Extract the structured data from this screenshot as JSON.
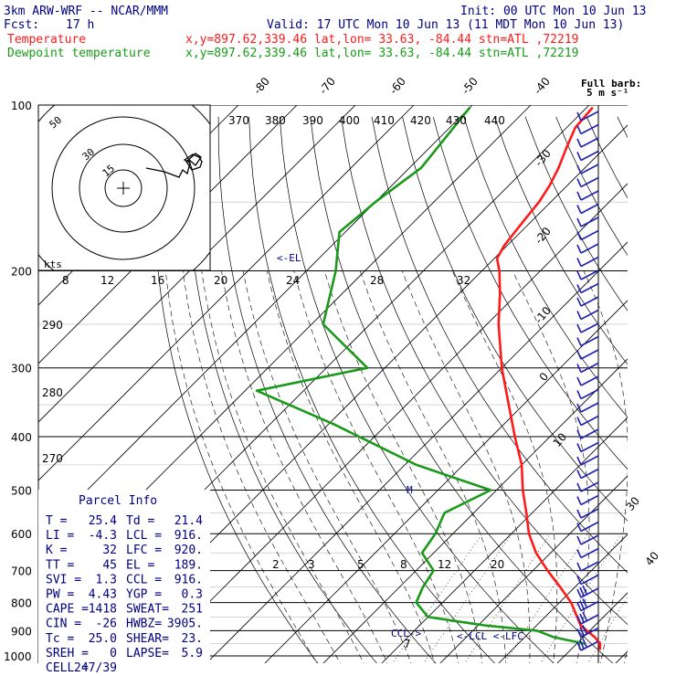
{
  "header": {
    "model": "3km ARW-WRF -- NCAR/MMM",
    "init": "Init: 00 UTC Mon 10 Jun 13",
    "fcst_label": "Fcst:",
    "fcst_value": "17 h",
    "valid": "Valid: 17 UTC Mon 10 Jun 13 (11 MDT Mon 10 Jun 13)",
    "temp_label": "Temperature",
    "dew_label": "Dewpoint temperature",
    "loc_temp": "x,y=897.62,339.46   lat,lon= 33.63, -84.44   stn=ATL ,72219",
    "loc_dew": "x,y=897.62,339.46   lat,lon= 33.63, -84.44   stn=ATL ,72219"
  },
  "colors": {
    "temperature": "#ff1a1a",
    "dewpoint": "#1a9a1a",
    "text": "#000080",
    "grid": "#000000"
  },
  "barb_label": {
    "line1": "Full barb:",
    "line2": "5 m s⁻¹"
  },
  "hodograph": {
    "units": "kts",
    "ring_labels": [
      "50",
      "30",
      "15"
    ]
  },
  "annotations": {
    "el": "<-EL",
    "lcl": "<-LCL",
    "lfc": "<-LFC",
    "ccl": "CCL->",
    "m": "M"
  },
  "parcel_info": {
    "title": "Parcel Info",
    "rows": [
      [
        "T   =",
        "25.4",
        "Td  =",
        "21.4"
      ],
      [
        "LI  =",
        "-4.3",
        "LCL =",
        "916."
      ],
      [
        "K   =",
        "32",
        "LFC =",
        "920."
      ],
      [
        "TT  =",
        "45",
        "EL  =",
        "189."
      ],
      [
        "SVI =",
        "1.3",
        "CCL =",
        "916."
      ],
      [
        "PW  =",
        "4.43",
        "YGP =",
        "0.3"
      ],
      [
        "CAPE =",
        "1418",
        "SWEAT=",
        "251"
      ],
      [
        "CIN  =",
        "-26",
        "HWBZ=",
        "3905."
      ],
      [
        "Tc  =",
        "25.0",
        "SHEAR=",
        "23."
      ],
      [
        "SREH =",
        "0",
        "LAPSE=",
        "5.9"
      ],
      [
        "CELL =",
        "247/39",
        "",
        ""
      ]
    ]
  },
  "chart_data": {
    "type": "line",
    "title": "3km ARW-WRF -- NCAR/MMM",
    "xlabel": "",
    "ylabel": "",
    "y_scale": "log-pressure (hPa, inverted)",
    "pressure_ticks": [
      100,
      200,
      300,
      400,
      500,
      600,
      700,
      800,
      900,
      1000
    ],
    "isotherm_labels": [
      "-80",
      "-70",
      "-60",
      "-50",
      "-40",
      "-30",
      "-20",
      "-10",
      "0",
      "10",
      "30",
      "40"
    ],
    "theta_labels": [
      "370",
      "380",
      "390",
      "400",
      "410",
      "420",
      "430",
      "440"
    ],
    "theta_side_labels": [
      "290",
      "280",
      "270"
    ],
    "mixing_ratio_labels_top": [
      "8",
      "12",
      "16",
      "20",
      "24",
      "28",
      "32"
    ],
    "mixing_ratio_labels_low": [
      "2",
      "3",
      "5",
      "8",
      "12",
      "20"
    ],
    "mixing_ratio_labels_bottom": [
      "7"
    ],
    "series": [
      {
        "name": "Temperature",
        "points": [
          [
            101,
            -69
          ],
          [
            110,
            -68.5
          ],
          [
            120,
            -66.5
          ],
          [
            130,
            -64.5
          ],
          [
            140,
            -63
          ],
          [
            150,
            -62
          ],
          [
            160,
            -61.5
          ],
          [
            170,
            -61
          ],
          [
            180,
            -60.5
          ],
          [
            190,
            -59.5
          ],
          [
            200,
            -57
          ],
          [
            220,
            -53
          ],
          [
            250,
            -48
          ],
          [
            300,
            -40
          ],
          [
            350,
            -32.5
          ],
          [
            400,
            -26
          ],
          [
            450,
            -20
          ],
          [
            500,
            -15.5
          ],
          [
            550,
            -11
          ],
          [
            600,
            -7
          ],
          [
            650,
            -2.5
          ],
          [
            700,
            2.5
          ],
          [
            750,
            7.5
          ],
          [
            800,
            12
          ],
          [
            850,
            15.5
          ],
          [
            880,
            17.5
          ],
          [
            900,
            19.5
          ],
          [
            925,
            22
          ],
          [
            950,
            24
          ],
          [
            975,
            25
          ]
        ]
      },
      {
        "name": "Dewpoint temperature",
        "points": [
          [
            101,
            -90
          ],
          [
            130,
            -88
          ],
          [
            150,
            -90
          ],
          [
            170,
            -91
          ],
          [
            200,
            -85
          ],
          [
            250,
            -78
          ],
          [
            300,
            -63
          ],
          [
            330,
            -78
          ],
          [
            380,
            -59
          ],
          [
            450,
            -38
          ],
          [
            500,
            -21
          ],
          [
            550,
            -25
          ],
          [
            600,
            -23
          ],
          [
            650,
            -22
          ],
          [
            700,
            -17
          ],
          [
            750,
            -16
          ],
          [
            800,
            -14.5
          ],
          [
            850,
            -10
          ],
          [
            880,
            1
          ],
          [
            900,
            11
          ],
          [
            925,
            15
          ],
          [
            950,
            21.4
          ]
        ]
      }
    ]
  }
}
